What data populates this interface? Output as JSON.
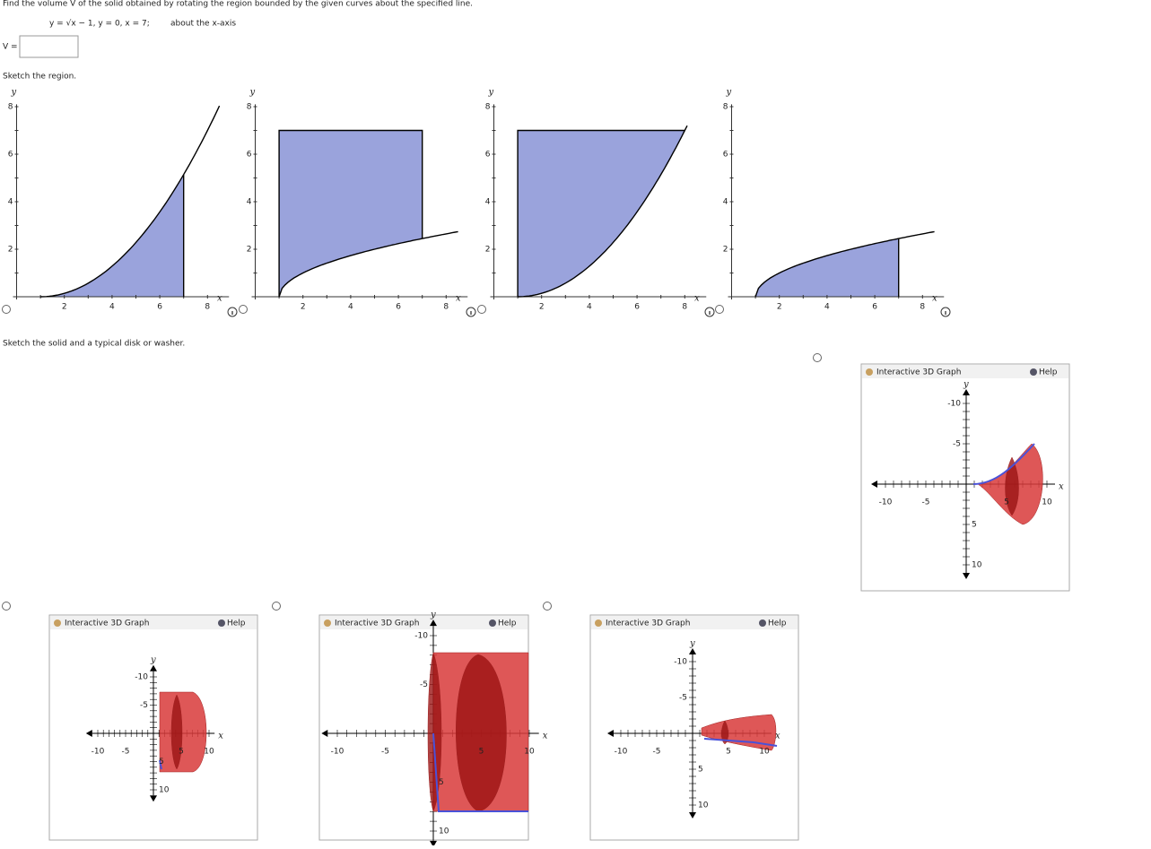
{
  "question": {
    "prompt": "Find the volume V of the solid obtained by rotating the region bounded by the given curves about the specified line.",
    "equation": "y = √x − 1,  y = 0,  x = 7;",
    "about": "about the x-axis",
    "answer_label": "V ="
  },
  "region_section": {
    "title": "Sketch the region.",
    "x_label": "x",
    "y_label": "y",
    "xticks": [
      2,
      4,
      6,
      8
    ],
    "yticks": [
      2,
      4,
      6,
      8
    ]
  },
  "solid_section": {
    "title": "Sketch the solid and a typical disk or washer.",
    "panel_title": "Interactive 3D Graph",
    "help": "Help",
    "x_label": "x",
    "y_label": "y",
    "ticks": [
      "-10",
      "-5",
      "5",
      "10"
    ]
  }
}
